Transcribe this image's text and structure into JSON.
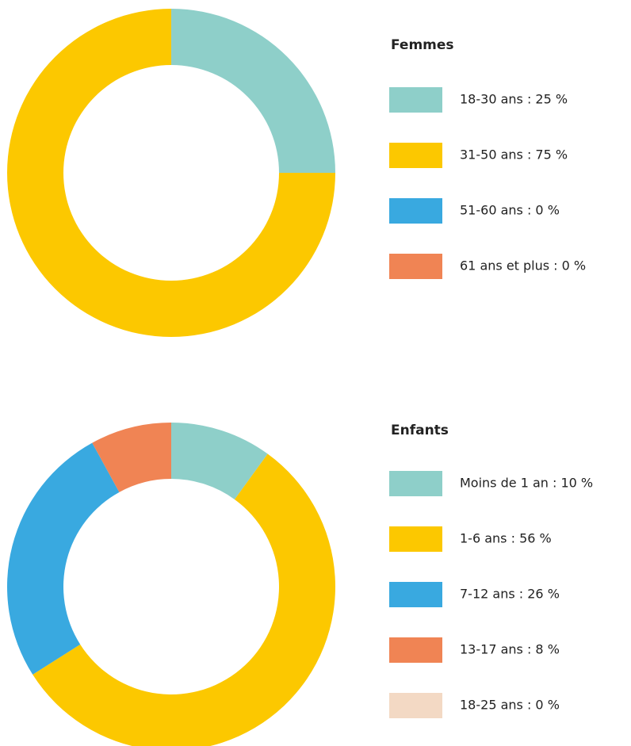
{
  "chart_data": [
    {
      "type": "donut",
      "title": "Femmes",
      "values": [
        25,
        75,
        0,
        0
      ],
      "value_labels": [
        "18-30 ans : 25 %",
        "31-50 ans : 75 %",
        "51-60 ans : 0 %",
        "61 ans et plus : 0 %"
      ],
      "colors": [
        "#8ecfc9",
        "#fcc800",
        "#39a9e0",
        "#f08454"
      ]
    },
    {
      "type": "donut",
      "title": "Enfants",
      "values": [
        10,
        56,
        26,
        8,
        0
      ],
      "value_labels": [
        "Moins de 1 an : 10 %",
        "1-6 ans : 56 %",
        "7-12 ans : 26 %",
        "13-17 ans : 8 %",
        "18-25 ans : 0 %"
      ],
      "colors": [
        "#8ecfc9",
        "#fcc800",
        "#39a9e0",
        "#f08454",
        "#f3d9c4"
      ]
    }
  ]
}
